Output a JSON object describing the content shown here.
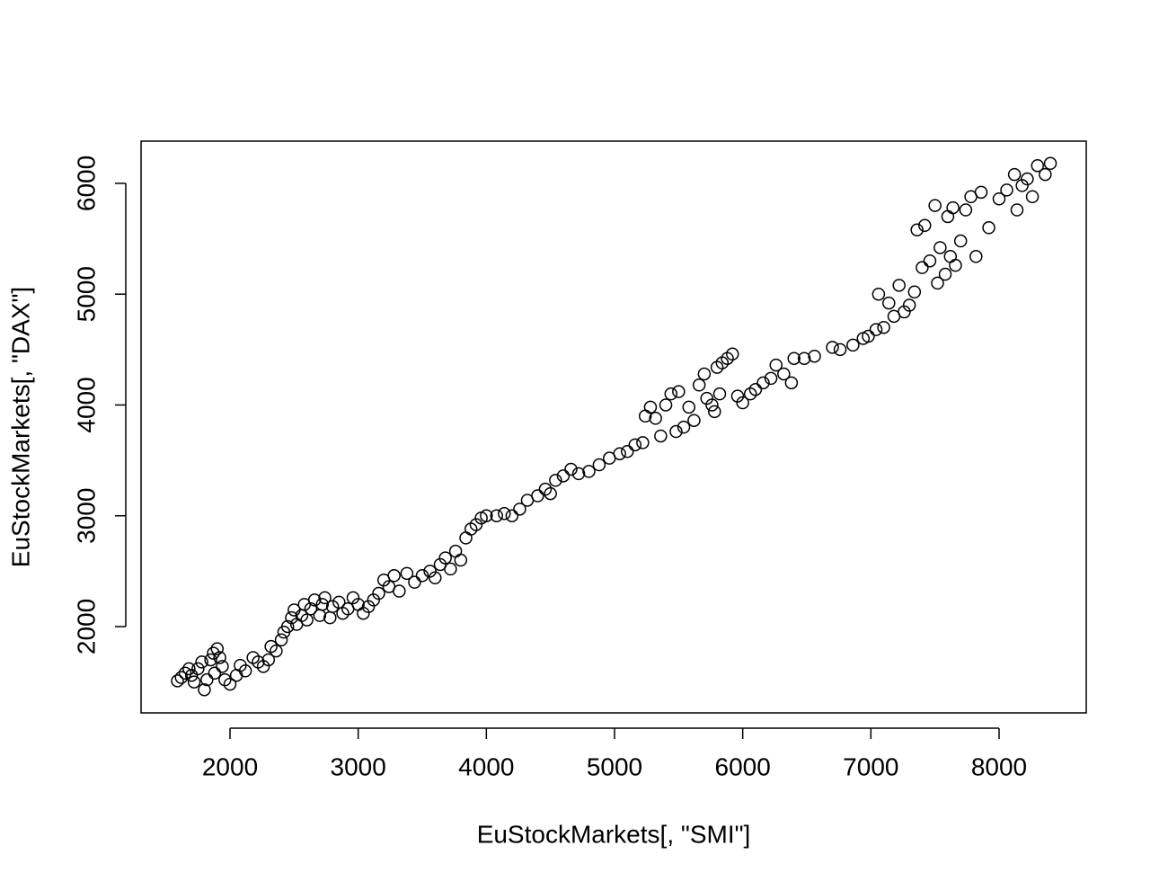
{
  "chart_data": {
    "type": "scatter",
    "x_label": "EuStockMarkets[, \"SMI\"]",
    "y_label": "EuStockMarkets[, \"DAX\"]",
    "color": "#000000",
    "xlim": [
      1306,
      8680
    ],
    "ylim": [
      1221,
      6381
    ],
    "xticks": [
      2000,
      3000,
      4000,
      5000,
      6000,
      7000,
      8000
    ],
    "yticks": [
      2000,
      3000,
      4000,
      5000,
      6000
    ],
    "x": [
      1590,
      1620,
      1650,
      1680,
      1700,
      1720,
      1750,
      1780,
      1800,
      1820,
      1850,
      1870,
      1880,
      1900,
      1920,
      1940,
      1960,
      2000,
      2050,
      2080,
      2120,
      2180,
      2220,
      2260,
      2300,
      2320,
      2360,
      2400,
      2420,
      2450,
      2480,
      2500,
      2520,
      2560,
      2580,
      2600,
      2630,
      2660,
      2700,
      2720,
      2740,
      2780,
      2800,
      2850,
      2880,
      2920,
      2960,
      3000,
      3040,
      3080,
      3120,
      3160,
      3200,
      3240,
      3280,
      3320,
      3380,
      3440,
      3500,
      3560,
      3600,
      3640,
      3680,
      3720,
      3760,
      3800,
      3840,
      3880,
      3920,
      3960,
      4000,
      4080,
      4140,
      4200,
      4260,
      4320,
      4400,
      4460,
      4500,
      4540,
      4600,
      4660,
      4720,
      4800,
      4880,
      4960,
      5040,
      5100,
      5160,
      5220,
      5240,
      5280,
      5320,
      5360,
      5400,
      5440,
      5480,
      5500,
      5540,
      5580,
      5620,
      5660,
      5700,
      5720,
      5760,
      5780,
      5800,
      5820,
      5840,
      5880,
      5920,
      5960,
      6000,
      6060,
      6100,
      6160,
      6220,
      6260,
      6320,
      6380,
      6400,
      6480,
      6560,
      6700,
      6760,
      6860,
      6940,
      6980,
      7040,
      7060,
      7100,
      7140,
      7180,
      7220,
      7260,
      7300,
      7340,
      7360,
      7400,
      7420,
      7460,
      7500,
      7520,
      7540,
      7580,
      7600,
      7620,
      7640,
      7660,
      7700,
      7740,
      7780,
      7820,
      7860,
      7920,
      8000,
      8060,
      8120,
      8140,
      8180,
      8220,
      8260,
      8300,
      8360,
      8400
    ],
    "y": [
      1510,
      1540,
      1580,
      1620,
      1560,
      1500,
      1620,
      1680,
      1430,
      1520,
      1700,
      1760,
      1580,
      1800,
      1720,
      1640,
      1520,
      1480,
      1560,
      1650,
      1600,
      1720,
      1680,
      1640,
      1700,
      1820,
      1780,
      1880,
      1950,
      2000,
      2080,
      2150,
      2020,
      2100,
      2200,
      2060,
      2160,
      2240,
      2100,
      2200,
      2260,
      2080,
      2180,
      2220,
      2120,
      2160,
      2260,
      2200,
      2120,
      2180,
      2240,
      2300,
      2420,
      2360,
      2460,
      2320,
      2480,
      2400,
      2460,
      2500,
      2440,
      2560,
      2620,
      2520,
      2680,
      2600,
      2800,
      2880,
      2920,
      2980,
      3000,
      3000,
      3020,
      3000,
      3060,
      3140,
      3180,
      3240,
      3200,
      3320,
      3360,
      3420,
      3380,
      3400,
      3460,
      3520,
      3560,
      3580,
      3640,
      3660,
      3900,
      3980,
      3880,
      3720,
      4000,
      4100,
      3760,
      4120,
      3800,
      3980,
      3860,
      4180,
      4280,
      4060,
      4000,
      3940,
      4340,
      4100,
      4380,
      4420,
      4460,
      4080,
      4020,
      4100,
      4140,
      4200,
      4240,
      4360,
      4280,
      4200,
      4420,
      4420,
      4440,
      4520,
      4500,
      4540,
      4600,
      4620,
      4680,
      5000,
      4700,
      4920,
      4800,
      5080,
      4840,
      4900,
      5020,
      5580,
      5240,
      5620,
      5300,
      5800,
      5100,
      5420,
      5180,
      5700,
      5340,
      5780,
      5260,
      5480,
      5760,
      5880,
      5340,
      5920,
      5600,
      5860,
      5940,
      6080,
      5760,
      5980,
      6040,
      5880,
      6160,
      6080,
      6180
    ]
  }
}
